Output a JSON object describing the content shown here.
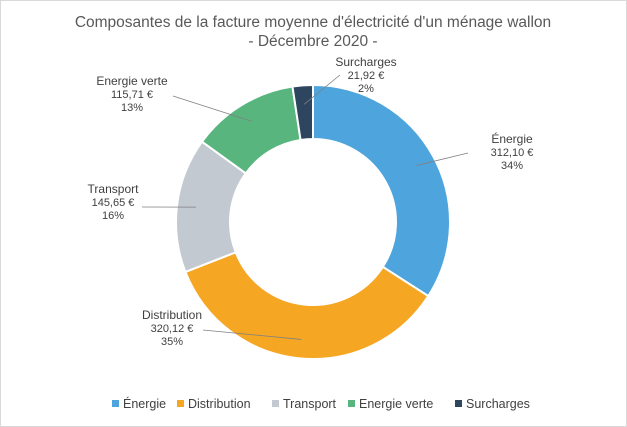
{
  "chart_data": {
    "type": "pie",
    "variant": "donut",
    "title": "Composantes de la facture moyenne d'électricité d'un ménage wallon",
    "subtitle": "- Décembre 2020 -",
    "slices": [
      {
        "name": "Énergie",
        "value": 312.1,
        "value_label": "312,10 €",
        "percent_label": "34%",
        "color": "#4EA4DC"
      },
      {
        "name": "Distribution",
        "value": 320.12,
        "value_label": "320,12 €",
        "percent_label": "35%",
        "color": "#F5A623"
      },
      {
        "name": "Transport",
        "value": 145.65,
        "value_label": "145,65 €",
        "percent_label": "16%",
        "color": "#C3C9D1"
      },
      {
        "name": "Energie verte",
        "value": 115.71,
        "value_label": "115,71 €",
        "percent_label": "13%",
        "color": "#58B57E"
      },
      {
        "name": "Surcharges",
        "value": 21.92,
        "value_label": "21,92 €",
        "percent_label": "2%",
        "color": "#2E4560"
      }
    ],
    "legend": {
      "position": "bottom",
      "entries": [
        "Énergie",
        "Distribution",
        "Transport",
        "Energie verte",
        "Surcharges"
      ]
    }
  }
}
